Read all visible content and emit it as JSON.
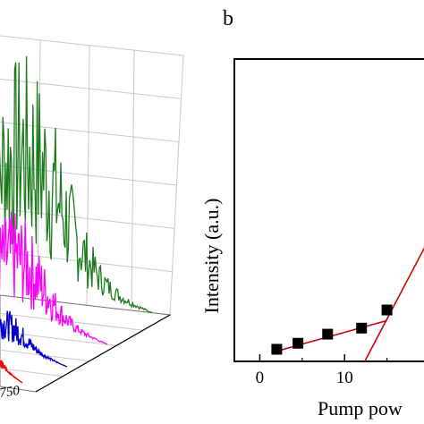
{
  "chart_data": [
    {
      "type": "line",
      "panel_label": "",
      "view": "3d-waterfall",
      "x_tick_visible": "750",
      "series": [
        {
          "color": "#1a7a1a",
          "peak": 1.0
        },
        {
          "color": "#ff00ff",
          "peak": 0.3
        },
        {
          "color": "#0000cc",
          "peak": 0.08
        },
        {
          "color": "#ff0000",
          "peak": 0.02
        }
      ],
      "grid": true
    },
    {
      "type": "scatter",
      "panel_label": "b",
      "xlabel": "Pump pow",
      "ylabel": "Intensity (a.u.)",
      "xticks": [
        "0",
        "10"
      ],
      "xlim": [
        -3,
        20
      ],
      "ylim": [
        0,
        1
      ],
      "points": [
        {
          "x": 2.0,
          "y": 0.04
        },
        {
          "x": 4.5,
          "y": 0.06
        },
        {
          "x": 8.0,
          "y": 0.09
        },
        {
          "x": 12.0,
          "y": 0.11
        },
        {
          "x": 15.0,
          "y": 0.17
        }
      ],
      "fit_lines": [
        {
          "color": "#d40000",
          "from": {
            "x": 1.5,
            "y": 0.03
          },
          "to": {
            "x": 15.0,
            "y": 0.135
          }
        },
        {
          "color": "#d40000",
          "from": {
            "x": 12.0,
            "y": -0.02
          },
          "to": {
            "x": 19.5,
            "y": 0.38
          }
        }
      ],
      "grid": false
    }
  ]
}
